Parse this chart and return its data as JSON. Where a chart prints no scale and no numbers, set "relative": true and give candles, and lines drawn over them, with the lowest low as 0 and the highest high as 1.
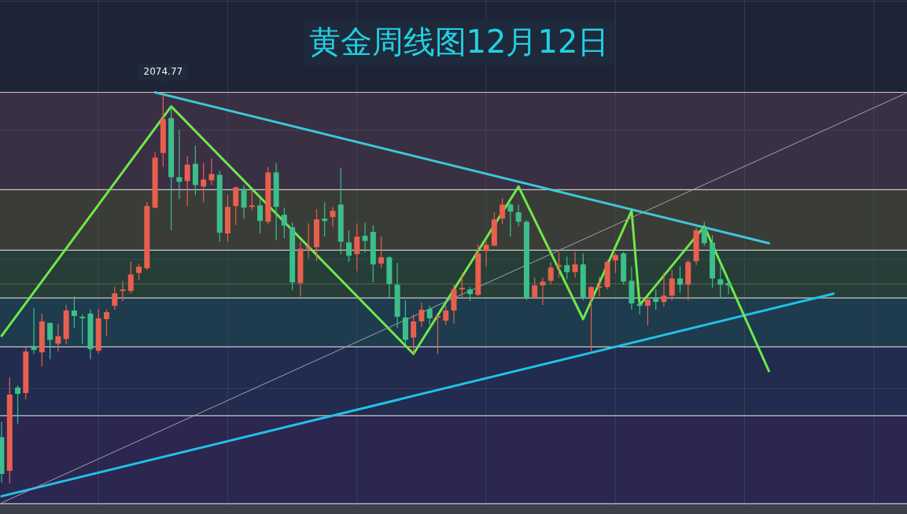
{
  "chart_data": {
    "type": "candlestick",
    "title": "黄金周线图12月12日",
    "relative": true,
    "grid": true,
    "categories": [
      null,
      null,
      null,
      null,
      null,
      null,
      null,
      null,
      null,
      null,
      null,
      null,
      null,
      null,
      null,
      null,
      null,
      null,
      null,
      null,
      null,
      null,
      null,
      null,
      null,
      null,
      null,
      null,
      null,
      null,
      null,
      null,
      null,
      null,
      null,
      null,
      null,
      null,
      null,
      null,
      null,
      null,
      null,
      null,
      null,
      null,
      null,
      null,
      null,
      null,
      null,
      null,
      null,
      null,
      null,
      null,
      null,
      null,
      null,
      null,
      null,
      null,
      null,
      null,
      null,
      null,
      null,
      null,
      null,
      null,
      null,
      null,
      null,
      null,
      null,
      null,
      null,
      null,
      null,
      null,
      null,
      null,
      null,
      null,
      null,
      null,
      null,
      null,
      null,
      null,
      null,
      null,
      null,
      null,
      null,
      null,
      null,
      null,
      null,
      null,
      null,
      null,
      null,
      null,
      null,
      null,
      null,
      null,
      null,
      null,
      null,
      null,
      null
    ],
    "ohlc": [
      [
        0.118,
        0.157,
        0.002,
        0.024
      ],
      [
        0.032,
        0.271,
        0,
        0.227
      ],
      [
        0.245,
        0.251,
        0.151,
        0.229
      ],
      [
        0.231,
        0.347,
        0.215,
        0.337
      ],
      [
        0.351,
        0.448,
        0.331,
        0.341
      ],
      [
        0.335,
        0.434,
        0.299,
        0.414
      ],
      [
        0.41,
        0.412,
        0.317,
        0.367
      ],
      [
        0.357,
        0.408,
        0.337,
        0.376
      ],
      [
        0.369,
        0.456,
        0.355,
        0.442
      ],
      [
        0.442,
        0.478,
        0.398,
        0.428
      ],
      [
        0.426,
        0.432,
        0.357,
        0.422
      ],
      [
        0.434,
        0.444,
        0.317,
        0.343
      ],
      [
        0.339,
        0.446,
        0.331,
        0.422
      ],
      [
        0.42,
        0.444,
        0.376,
        0.438
      ],
      [
        0.454,
        0.502,
        0.444,
        0.486
      ],
      [
        0.492,
        0.518,
        0.466,
        0.496
      ],
      [
        0.492,
        0.568,
        0.486,
        0.534
      ],
      [
        0.538,
        0.562,
        0.52,
        0.554
      ],
      [
        0.55,
        0.719,
        0.546,
        0.709
      ],
      [
        0.705,
        0.847,
        0.703,
        0.833
      ],
      [
        0.845,
        1.0,
        0.809,
        0.932
      ],
      [
        0.934,
        0.964,
        0.647,
        0.783
      ],
      [
        0.783,
        0.904,
        0.727,
        0.771
      ],
      [
        0.773,
        0.837,
        0.709,
        0.815
      ],
      [
        0.817,
        0.863,
        0.737,
        0.763
      ],
      [
        0.759,
        0.819,
        0.719,
        0.777
      ],
      [
        0.775,
        0.831,
        0.763,
        0.791
      ],
      [
        0.789,
        0.799,
        0.618,
        0.641
      ],
      [
        0.639,
        0.737,
        0.618,
        0.707
      ],
      [
        0.709,
        0.759,
        0.661,
        0.757
      ],
      [
        0.753,
        0.763,
        0.677,
        0.705
      ],
      [
        0.707,
        0.749,
        0.699,
        0.711
      ],
      [
        0.711,
        0.727,
        0.639,
        0.671
      ],
      [
        0.669,
        0.809,
        0.663,
        0.795
      ],
      [
        0.795,
        0.819,
        0.622,
        0.707
      ],
      [
        0.687,
        0.705,
        0.627,
        0.659
      ],
      [
        0.655,
        0.667,
        0.494,
        0.514
      ],
      [
        0.512,
        0.618,
        0.478,
        0.6
      ],
      [
        0.6,
        0.665,
        0.576,
        0.604
      ],
      [
        0.604,
        0.701,
        0.568,
        0.675
      ],
      [
        0.677,
        0.719,
        0.631,
        0.671
      ],
      [
        0.681,
        0.707,
        0.655,
        0.697
      ],
      [
        0.713,
        0.807,
        0.586,
        0.618
      ],
      [
        0.616,
        0.647,
        0.566,
        0.582
      ],
      [
        0.586,
        0.665,
        0.542,
        0.631
      ],
      [
        0.633,
        0.667,
        0.59,
        0.62
      ],
      [
        0.643,
        0.659,
        0.514,
        0.56
      ],
      [
        0.562,
        0.631,
        0.55,
        0.578
      ],
      [
        0.578,
        0.582,
        0.472,
        0.51
      ],
      [
        0.508,
        0.564,
        0.398,
        0.426
      ],
      [
        0.424,
        0.468,
        0.355,
        0.367
      ],
      [
        0.373,
        0.432,
        0.331,
        0.414
      ],
      [
        0.414,
        0.462,
        0.4,
        0.444
      ],
      [
        0.446,
        0.454,
        0.406,
        0.422
      ],
      [
        0.424,
        0.43,
        0.331,
        0.428
      ],
      [
        0.416,
        0.454,
        0.406,
        0.442
      ],
      [
        0.442,
        0.508,
        0.408,
        0.496
      ],
      [
        0.496,
        0.536,
        0.476,
        0.5
      ],
      [
        0.496,
        0.502,
        0.466,
        0.484
      ],
      [
        0.482,
        0.612,
        0.478,
        0.588
      ],
      [
        0.594,
        0.618,
        0.554,
        0.61
      ],
      [
        0.608,
        0.693,
        0.606,
        0.675
      ],
      [
        0.677,
        0.729,
        0.663,
        0.713
      ],
      [
        0.713,
        0.717,
        0.631,
        0.695
      ],
      [
        0.693,
        0.713,
        0.657,
        0.669
      ],
      [
        0.669,
        0.673,
        0.468,
        0.476
      ],
      [
        0.476,
        0.526,
        0.472,
        0.506
      ],
      [
        0.506,
        0.526,
        0.456,
        0.516
      ],
      [
        0.518,
        0.566,
        0.508,
        0.552
      ],
      [
        0.554,
        0.592,
        0.526,
        0.558
      ],
      [
        0.558,
        0.58,
        0.522,
        0.54
      ],
      [
        0.54,
        0.592,
        0.526,
        0.56
      ],
      [
        0.56,
        0.588,
        0.468,
        0.476
      ],
      [
        0.476,
        0.504,
        0.337,
        0.502
      ],
      [
        0.5,
        0.528,
        0.478,
        0.504
      ],
      [
        0.502,
        0.572,
        0.496,
        0.566
      ],
      [
        0.57,
        0.588,
        0.538,
        0.584
      ],
      [
        0.588,
        0.592,
        0.508,
        0.516
      ],
      [
        0.518,
        0.554,
        0.444,
        0.46
      ],
      [
        0.458,
        0.466,
        0.432,
        0.454
      ],
      [
        0.454,
        0.472,
        0.404,
        0.47
      ],
      [
        0.472,
        0.496,
        0.444,
        0.464
      ],
      [
        0.464,
        0.538,
        0.452,
        0.48
      ],
      [
        0.48,
        0.546,
        0.468,
        0.524
      ],
      [
        0.524,
        0.556,
        0.488,
        0.508
      ],
      [
        0.508,
        0.572,
        0.468,
        0.566
      ],
      [
        0.568,
        0.655,
        0.558,
        0.647
      ],
      [
        0.653,
        0.669,
        0.608,
        0.614
      ],
      [
        0.616,
        0.635,
        0.5,
        0.524
      ],
      [
        0.522,
        0.554,
        0.476,
        0.508
      ],
      [
        0.512,
        0.522,
        0.484,
        0.506
      ],
      null,
      null,
      null,
      null,
      null,
      null,
      null,
      null,
      null,
      null,
      null,
      null,
      null,
      null,
      null,
      null,
      null,
      null,
      null,
      null,
      null,
      null
    ],
    "colors": [
      "#3cbf8a",
      "#e95f4d",
      "#3cbf8a",
      "#e95f4d",
      "#3cbf8a",
      "#e95f4d",
      "#3cbf8a",
      "#e95f4d",
      "#e95f4d",
      "#3cbf8a",
      "#3cbf8a",
      "#3cbf8a",
      "#e95f4d",
      "#e95f4d",
      "#e95f4d",
      "#e95f4d",
      "#e95f4d",
      "#e95f4d",
      "#e95f4d",
      "#e95f4d",
      "#e95f4d",
      "#3cbf8a",
      "#3cbf8a",
      "#e95f4d",
      "#3cbf8a",
      "#e95f4d",
      "#e95f4d",
      "#3cbf8a",
      "#e95f4d",
      "#e95f4d",
      "#3cbf8a",
      "#e95f4d",
      "#3cbf8a",
      "#e95f4d",
      "#3cbf8a",
      "#3cbf8a",
      "#3cbf8a",
      "#e95f4d",
      "#e95f4d",
      "#e95f4d",
      "#3cbf8a",
      "#e95f4d",
      "#3cbf8a",
      "#3cbf8a",
      "#e95f4d",
      "#3cbf8a",
      "#3cbf8a",
      "#e95f4d",
      "#3cbf8a",
      "#3cbf8a",
      "#3cbf8a",
      "#e95f4d",
      "#e95f4d",
      "#3cbf8a",
      "#e95f4d",
      "#e95f4d",
      "#e95f4d",
      "#e95f4d",
      "#3cbf8a",
      "#e95f4d",
      "#e95f4d",
      "#e95f4d",
      "#e95f4d",
      "#3cbf8a",
      "#3cbf8a",
      "#3cbf8a",
      "#e95f4d",
      "#e95f4d",
      "#e95f4d",
      "#e95f4d",
      "#3cbf8a",
      "#e95f4d",
      "#3cbf8a",
      "#e95f4d",
      "#e95f4d",
      "#e95f4d",
      "#e95f4d",
      "#3cbf8a",
      "#3cbf8a",
      "#3cbf8a",
      "#e95f4d",
      "#3cbf8a",
      "#e95f4d",
      "#e95f4d",
      "#3cbf8a",
      "#e95f4d",
      "#e95f4d",
      "#3cbf8a",
      "#3cbf8a",
      "#3cbf8a",
      "#3cbf8a",
      null,
      null,
      null,
      null,
      null,
      null,
      null,
      null,
      null,
      null,
      null,
      null,
      null,
      null,
      null,
      null,
      null,
      null,
      null,
      null,
      null,
      null
    ],
    "series": [
      {
        "type": "line",
        "color": "#3ec8d9",
        "values": [
          null,
          null,
          null,
          null,
          null,
          null,
          null,
          null,
          null,
          null,
          null,
          null,
          null,
          null,
          null,
          null,
          null,
          null,
          null,
          1.0,
          null,
          null,
          null,
          null,
          null,
          null,
          null,
          null,
          null,
          null,
          null,
          null,
          null,
          null,
          null,
          null,
          null,
          null,
          null,
          null,
          null,
          null,
          null,
          null,
          null,
          null,
          null,
          null,
          null,
          null,
          null,
          null,
          null,
          null,
          null,
          null,
          null,
          null,
          null,
          null,
          null,
          null,
          null,
          null,
          null,
          null,
          null,
          null,
          null,
          null,
          null,
          null,
          null,
          null,
          null,
          null,
          null,
          null,
          null,
          null,
          null,
          null,
          null,
          null,
          null,
          null,
          null,
          null,
          null,
          null,
          null,
          null,
          null,
          null,
          null,
          0.614,
          null,
          null,
          null,
          null,
          null,
          null,
          null,
          null,
          null,
          null,
          null,
          null,
          null,
          null,
          null,
          null,
          null
        ]
      },
      {
        "type": "line",
        "color": "#22c2e8",
        "values": [
          -0.033,
          null,
          null,
          null,
          null,
          null,
          null,
          null,
          null,
          null,
          null,
          null,
          null,
          null,
          null,
          null,
          null,
          null,
          null,
          null,
          null,
          null,
          null,
          null,
          null,
          null,
          null,
          null,
          null,
          null,
          null,
          null,
          null,
          null,
          null,
          null,
          null,
          null,
          null,
          null,
          null,
          null,
          null,
          null,
          null,
          null,
          null,
          null,
          null,
          null,
          null,
          null,
          null,
          null,
          null,
          null,
          null,
          null,
          null,
          null,
          null,
          null,
          null,
          null,
          null,
          null,
          null,
          null,
          null,
          null,
          null,
          null,
          null,
          null,
          null,
          null,
          null,
          null,
          null,
          null,
          null,
          null,
          null,
          null,
          null,
          null,
          null,
          null,
          null,
          null,
          null,
          null,
          null,
          null,
          null,
          null,
          null,
          null,
          null,
          null,
          null,
          null,
          null,
          0.485,
          null,
          null,
          null,
          null,
          null,
          null,
          null,
          null,
          null
        ]
      },
      {
        "type": "line",
        "color": "#6fe84b",
        "values": [
          0.377,
          null,
          null,
          null,
          null,
          null,
          null,
          null,
          null,
          null,
          null,
          null,
          null,
          null,
          null,
          null,
          null,
          null,
          null,
          null,
          null,
          0.964,
          null,
          null,
          null,
          null,
          null,
          null,
          null,
          null,
          null,
          null,
          null,
          null,
          null,
          null,
          null,
          null,
          null,
          null,
          null,
          null,
          null,
          null,
          null,
          null,
          null,
          null,
          null,
          null,
          null,
          0.331,
          null,
          null,
          null,
          null,
          null,
          null,
          null,
          null,
          null,
          null,
          null,
          null,
          0.759,
          null,
          null,
          null,
          null,
          null,
          null,
          null,
          0.42,
          null,
          null,
          null,
          null,
          null,
          0.697,
          0.456,
          null,
          null,
          null,
          null,
          null,
          null,
          null,
          0.657,
          null,
          null,
          null,
          null,
          null,
          null,
          null,
          0.287,
          null,
          null,
          null,
          null,
          null,
          null,
          null,
          null,
          null,
          null,
          null,
          null,
          null,
          null,
          null,
          null,
          null
        ]
      },
      {
        "type": "line",
        "color": "#a59fb0",
        "values": [
          -0.05,
          null,
          null,
          null,
          null,
          null,
          null,
          null,
          null,
          null,
          null,
          null,
          null,
          null,
          null,
          null,
          null,
          null,
          null,
          null,
          null,
          null,
          null,
          null,
          null,
          null,
          null,
          null,
          null,
          null,
          null,
          null,
          null,
          null,
          null,
          null,
          null,
          null,
          null,
          null,
          null,
          null,
          null,
          null,
          null,
          null,
          null,
          null,
          null,
          null,
          null,
          null,
          null,
          null,
          null,
          null,
          null,
          null,
          null,
          null,
          null,
          null,
          null,
          null,
          null,
          null,
          null,
          null,
          null,
          null,
          null,
          null,
          null,
          null,
          null,
          null,
          null,
          null,
          null,
          null,
          null,
          null,
          null,
          null,
          null,
          null,
          null,
          null,
          null,
          null,
          null,
          null,
          null,
          null,
          null,
          null,
          null,
          null,
          null,
          null,
          null,
          null,
          null,
          null,
          null,
          null,
          null,
          null,
          null,
          null,
          null,
          null,
          0.998
        ]
      }
    ],
    "ref_lines": [
      {
        "axis": "y",
        "value": 1.0,
        "color": "#c9c9cc"
      },
      {
        "axis": "y",
        "value": 0.751,
        "color": "#c9c9cc"
      },
      {
        "axis": "y",
        "value": 0.596,
        "color": "#c9c9cc"
      },
      {
        "axis": "y",
        "value": 0.474,
        "color": "#c9c9cc"
      },
      {
        "axis": "y",
        "value": 0.349,
        "color": "#c9c9cc"
      },
      {
        "axis": "y",
        "value": 0.173,
        "color": "#c9c9cc"
      },
      {
        "axis": "y",
        "value": -0.052,
        "color": "#c9c9cc"
      },
      {
        "axis": "y",
        "value": 0.51,
        "color": "#56675f"
      }
    ],
    "bands": [
      {
        "axis": "y",
        "from": 0.751,
        "to": 1.0,
        "color": "#3a3044"
      },
      {
        "axis": "y",
        "from": 0.596,
        "to": 0.751,
        "color": "#3a3c37"
      },
      {
        "axis": "y",
        "from": 0.474,
        "to": 0.596,
        "color": "#263e37"
      },
      {
        "axis": "y",
        "from": 0.349,
        "to": 0.474,
        "color": "#1e3c4d"
      },
      {
        "axis": "y",
        "from": 0.173,
        "to": 0.349,
        "color": "#212c4e"
      },
      {
        "axis": "y",
        "from": -0.052,
        "to": 0.173,
        "color": "#2b2750"
      }
    ],
    "annotations": [
      {
        "text": "2074.77",
        "y": 1.0
      }
    ]
  }
}
